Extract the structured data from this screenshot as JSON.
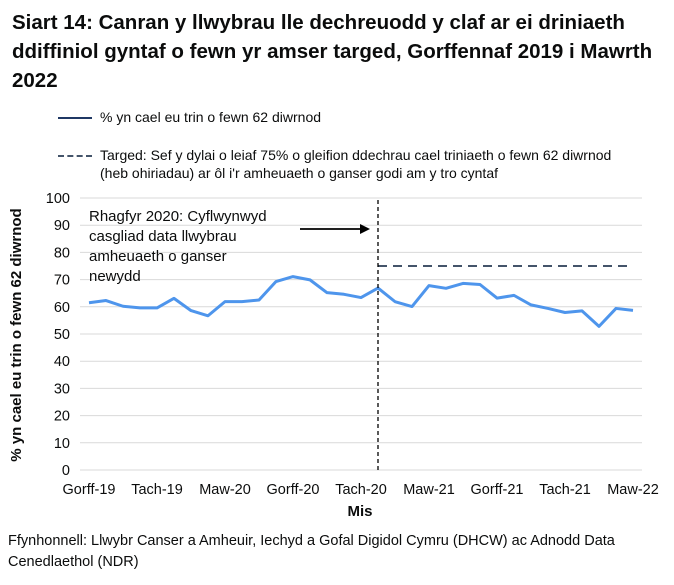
{
  "title": "Siart 14: Canran y llwybrau lle dechreuodd y claf ar ei driniaeth ddiffiniol gyntaf o fewn yr amser targed, Gorffennaf 2019 i Mawrth 2022",
  "source": "Ffynhonnell: Llwybr Canser a Amheuir, Iechyd a Gofal Digidol Cymru (DHCW) ac Adnodd Data Cenedlaethol (NDR)",
  "chart_data": {
    "type": "line",
    "title": "Siart 14: Canran y llwybrau lle dechreuodd y claf ar ei driniaeth ddiffiniol gyntaf o fewn yr amser targed, Gorffennaf 2019 i Mawrth 2022",
    "xlabel": "Mis",
    "ylabel": "% yn cael eu trin o fewn 62 diwrnod",
    "ylim": [
      0,
      100
    ],
    "yticks": [
      0,
      10,
      20,
      30,
      40,
      50,
      60,
      70,
      80,
      90,
      100
    ],
    "grid": true,
    "legend_position": "top",
    "x": [
      "2019-07",
      "2019-08",
      "2019-09",
      "2019-10",
      "2019-11",
      "2019-12",
      "2020-01",
      "2020-02",
      "2020-03",
      "2020-04",
      "2020-05",
      "2020-06",
      "2020-07",
      "2020-08",
      "2020-09",
      "2020-10",
      "2020-11",
      "2020-12",
      "2021-01",
      "2021-02",
      "2021-03",
      "2021-04",
      "2021-05",
      "2021-06",
      "2021-07",
      "2021-08",
      "2021-09",
      "2021-10",
      "2021-11",
      "2021-12",
      "2022-01",
      "2022-02",
      "2022-03"
    ],
    "xtick_labels": [
      {
        "index": 0,
        "label": "Gorff-19"
      },
      {
        "index": 4,
        "label": "Tach-19"
      },
      {
        "index": 8,
        "label": "Maw-20"
      },
      {
        "index": 12,
        "label": "Gorff-20"
      },
      {
        "index": 16,
        "label": "Tach-20"
      },
      {
        "index": 20,
        "label": "Maw-21"
      },
      {
        "index": 24,
        "label": "Gorff-21"
      },
      {
        "index": 28,
        "label": "Tach-21"
      },
      {
        "index": 32,
        "label": "Maw-22"
      }
    ],
    "series": [
      {
        "name": "% yn cael eu trin o fewn 62 diwrnod",
        "color": "#4e95ec",
        "style": "solid",
        "values": [
          61.5,
          62.3,
          60.2,
          59.6,
          59.6,
          63.1,
          58.6,
          56.7,
          61.9,
          61.9,
          62.5,
          69.3,
          71.1,
          69.9,
          65.2,
          64.6,
          63.4,
          66.9,
          61.9,
          60.1,
          67.8,
          66.8,
          68.6,
          68.2,
          63.2,
          64.2,
          60.7,
          59.4,
          57.9,
          58.5,
          52.8,
          59.4,
          58.7
        ]
      },
      {
        "name": "Targed: Sef y dylai o leiaf 75% o gleifion ddechrau cael triniaeth o fewn 62 diwrnod (heb ohiriadau) ar ôl i'r amheuaeth o ganser godi am y tro cyntaf",
        "color": "#44546a",
        "style": "dashed",
        "start_index": 17,
        "end_index": 32,
        "value": 75
      }
    ],
    "annotation": {
      "text_lines": [
        "Rhagfyr 2020: Cyflwynwyd",
        "casgliad data llwybrau",
        "amheuaeth o ganser",
        "newydd"
      ],
      "marker_index": 17
    }
  }
}
